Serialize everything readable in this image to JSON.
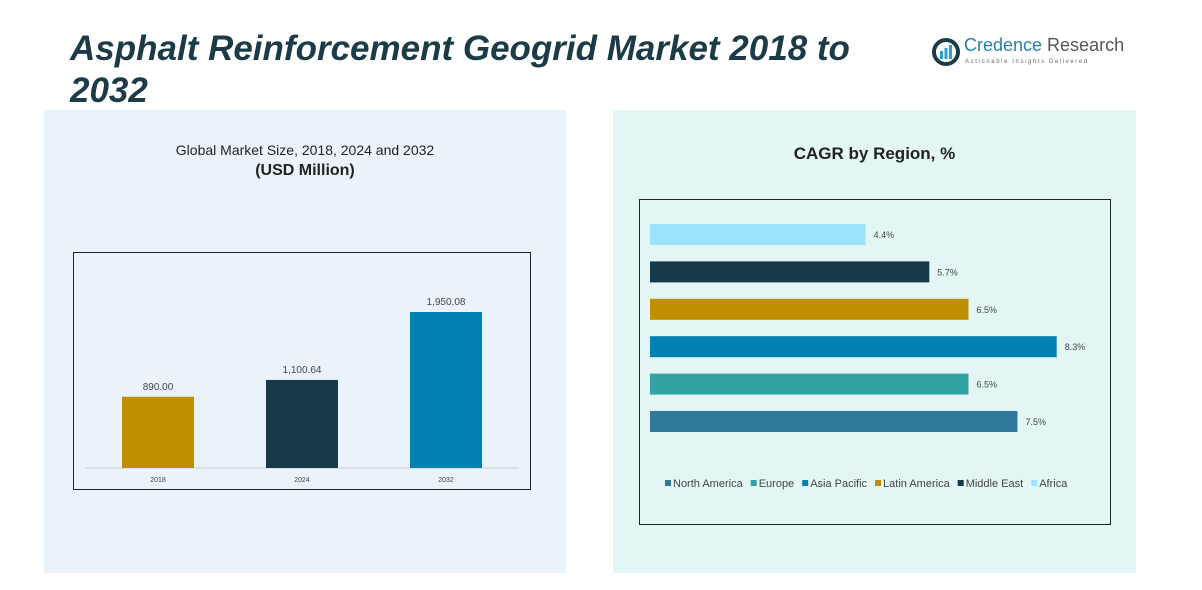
{
  "title": "Asphalt Reinforcement Geogrid Market 2018 to 2032",
  "logo": {
    "name_a": "Credence",
    "name_b": " Research",
    "tagline": "Actionable Insights Delivered"
  },
  "chart_data": [
    {
      "type": "bar",
      "title": "Global Market Size, 2018, 2024 and 2032",
      "subtitle": "(USD Million)",
      "categories": [
        "2018",
        "2024",
        "2032"
      ],
      "values": [
        890.0,
        1100.64,
        1950.08
      ],
      "labels": [
        "890.00",
        "1,100.64",
        "1,950.08"
      ],
      "colors": [
        "#c08f00",
        "#173a48",
        "#0381b5"
      ],
      "grid": false
    },
    {
      "type": "bar",
      "orientation": "horizontal",
      "title": "CAGR by Region, %",
      "categories": [
        "North America",
        "Europe",
        "Asia Pacific",
        "Latin America",
        "Middle East",
        "Africa"
      ],
      "values": [
        7.5,
        6.5,
        8.3,
        6.5,
        5.7,
        4.4
      ],
      "labels": [
        "7.5%",
        "6.5%",
        "8.3%",
        "6.5%",
        "5.7%",
        "4.4%"
      ],
      "colors": [
        "#2f7a9a",
        "#32a3a3",
        "#0381b5",
        "#c08f00",
        "#173a48",
        "#9be3fb"
      ],
      "legend": "bottom",
      "grid": false
    }
  ]
}
